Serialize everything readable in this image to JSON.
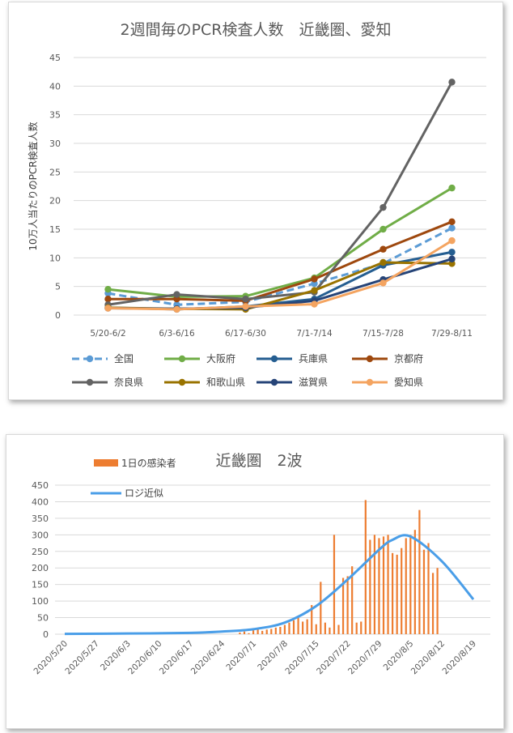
{
  "chart_data": [
    {
      "type": "line",
      "title": "2週間毎のPCR検査人数　近畿圏、愛知",
      "ylabel": "10万人当たりのPCR検査人数",
      "xlabel": "",
      "ylim": [
        0,
        45
      ],
      "yticks": [
        "0",
        "5",
        "10",
        "15",
        "20",
        "25",
        "30",
        "35",
        "40",
        "45"
      ],
      "categories": [
        "5/20-6/2",
        "6/3-6/16",
        "6/17-6/30",
        "7/1-7/14",
        "7/15-7/28",
        "7/29-8/11"
      ],
      "grid": true,
      "legend_position": "bottom",
      "series": [
        {
          "name": "全国",
          "color": "#5b9bd5",
          "dashed": true,
          "values": [
            3.8,
            1.8,
            2.3,
            5.5,
            9.0,
            15.2
          ]
        },
        {
          "name": "大阪府",
          "color": "#70ad47",
          "dashed": false,
          "values": [
            4.5,
            3.2,
            3.3,
            6.5,
            15.0,
            22.2
          ]
        },
        {
          "name": "兵庫県",
          "color": "#255e91",
          "dashed": false,
          "values": [
            1.3,
            1.0,
            1.5,
            2.8,
            8.7,
            11.0
          ]
        },
        {
          "name": "京都府",
          "color": "#9e480e",
          "dashed": false,
          "values": [
            2.8,
            2.8,
            2.5,
            6.3,
            11.5,
            16.3
          ]
        },
        {
          "name": "奈良県",
          "color": "#636363",
          "dashed": false,
          "values": [
            1.8,
            3.6,
            2.8,
            4.0,
            18.8,
            40.7
          ]
        },
        {
          "name": "和歌山県",
          "color": "#997300",
          "dashed": false,
          "values": [
            1.3,
            1.1,
            1.0,
            4.3,
            9.2,
            9.0
          ]
        },
        {
          "name": "滋賀県",
          "color": "#264478",
          "dashed": false,
          "values": [
            1.2,
            1.1,
            1.3,
            2.5,
            6.2,
            9.8
          ]
        },
        {
          "name": "愛知県",
          "color": "#f4a460",
          "dashed": false,
          "values": [
            1.2,
            1.0,
            1.5,
            1.9,
            5.6,
            13.0
          ]
        }
      ]
    },
    {
      "type": "bar",
      "title": "近畿圏　2波",
      "ylim": [
        0,
        450
      ],
      "yticks": [
        "0",
        "50",
        "100",
        "150",
        "200",
        "250",
        "300",
        "350",
        "400",
        "450"
      ],
      "x_tick_labels": [
        "2020/5/20",
        "2020/5/27",
        "2020/6/3",
        "2020/6/10",
        "2020/6/17",
        "2020/6/24",
        "2020/7/1",
        "2020/7/8",
        "2020/7/15",
        "2020/7/22",
        "2020/7/29",
        "2020/8/5",
        "2020/8/12",
        "2020/8/19"
      ],
      "x_start": "2020/5/20",
      "x_end": "2020/8/19",
      "grid": true,
      "legend_position": "top-left",
      "series": [
        {
          "name": "1日の感染者",
          "kind": "bar",
          "color": "#ed7d31",
          "dates": [
            "2020/6/28",
            "2020/6/29",
            "2020/6/30",
            "2020/7/1",
            "2020/7/2",
            "2020/7/3",
            "2020/7/4",
            "2020/7/5",
            "2020/7/6",
            "2020/7/7",
            "2020/7/8",
            "2020/7/9",
            "2020/7/10",
            "2020/7/11",
            "2020/7/12",
            "2020/7/13",
            "2020/7/14",
            "2020/7/15",
            "2020/7/16",
            "2020/7/17",
            "2020/7/18",
            "2020/7/19",
            "2020/7/20",
            "2020/7/21",
            "2020/7/22",
            "2020/7/23",
            "2020/7/24",
            "2020/7/25",
            "2020/7/26",
            "2020/7/27",
            "2020/7/28",
            "2020/7/29",
            "2020/7/30",
            "2020/7/31",
            "2020/8/1",
            "2020/8/2",
            "2020/8/3",
            "2020/8/4",
            "2020/8/5",
            "2020/8/6",
            "2020/8/7",
            "2020/8/8",
            "2020/8/9",
            "2020/8/10",
            "2020/8/11",
            "2020/8/12",
            "2020/8/13"
          ],
          "values": [
            5,
            8,
            3,
            12,
            15,
            10,
            14,
            16,
            20,
            22,
            28,
            35,
            42,
            50,
            38,
            45,
            88,
            30,
            158,
            35,
            20,
            300,
            28,
            170,
            175,
            205,
            35,
            38,
            405,
            285,
            300,
            290,
            295,
            300,
            245,
            240,
            260,
            290,
            300,
            315,
            375,
            255,
            275,
            185,
            200,
            0,
            0
          ]
        },
        {
          "name": "ロジ近似",
          "kind": "line",
          "color": "#4a9ee8",
          "dates": [
            "2020/5/20",
            "2020/6/3",
            "2020/6/17",
            "2020/6/24",
            "2020/7/1",
            "2020/7/8",
            "2020/7/15",
            "2020/7/22",
            "2020/7/29",
            "2020/8/1",
            "2020/8/5",
            "2020/8/12",
            "2020/8/19"
          ],
          "values": [
            1,
            2,
            4,
            8,
            15,
            35,
            85,
            165,
            255,
            285,
            295,
            220,
            105
          ]
        }
      ]
    }
  ]
}
